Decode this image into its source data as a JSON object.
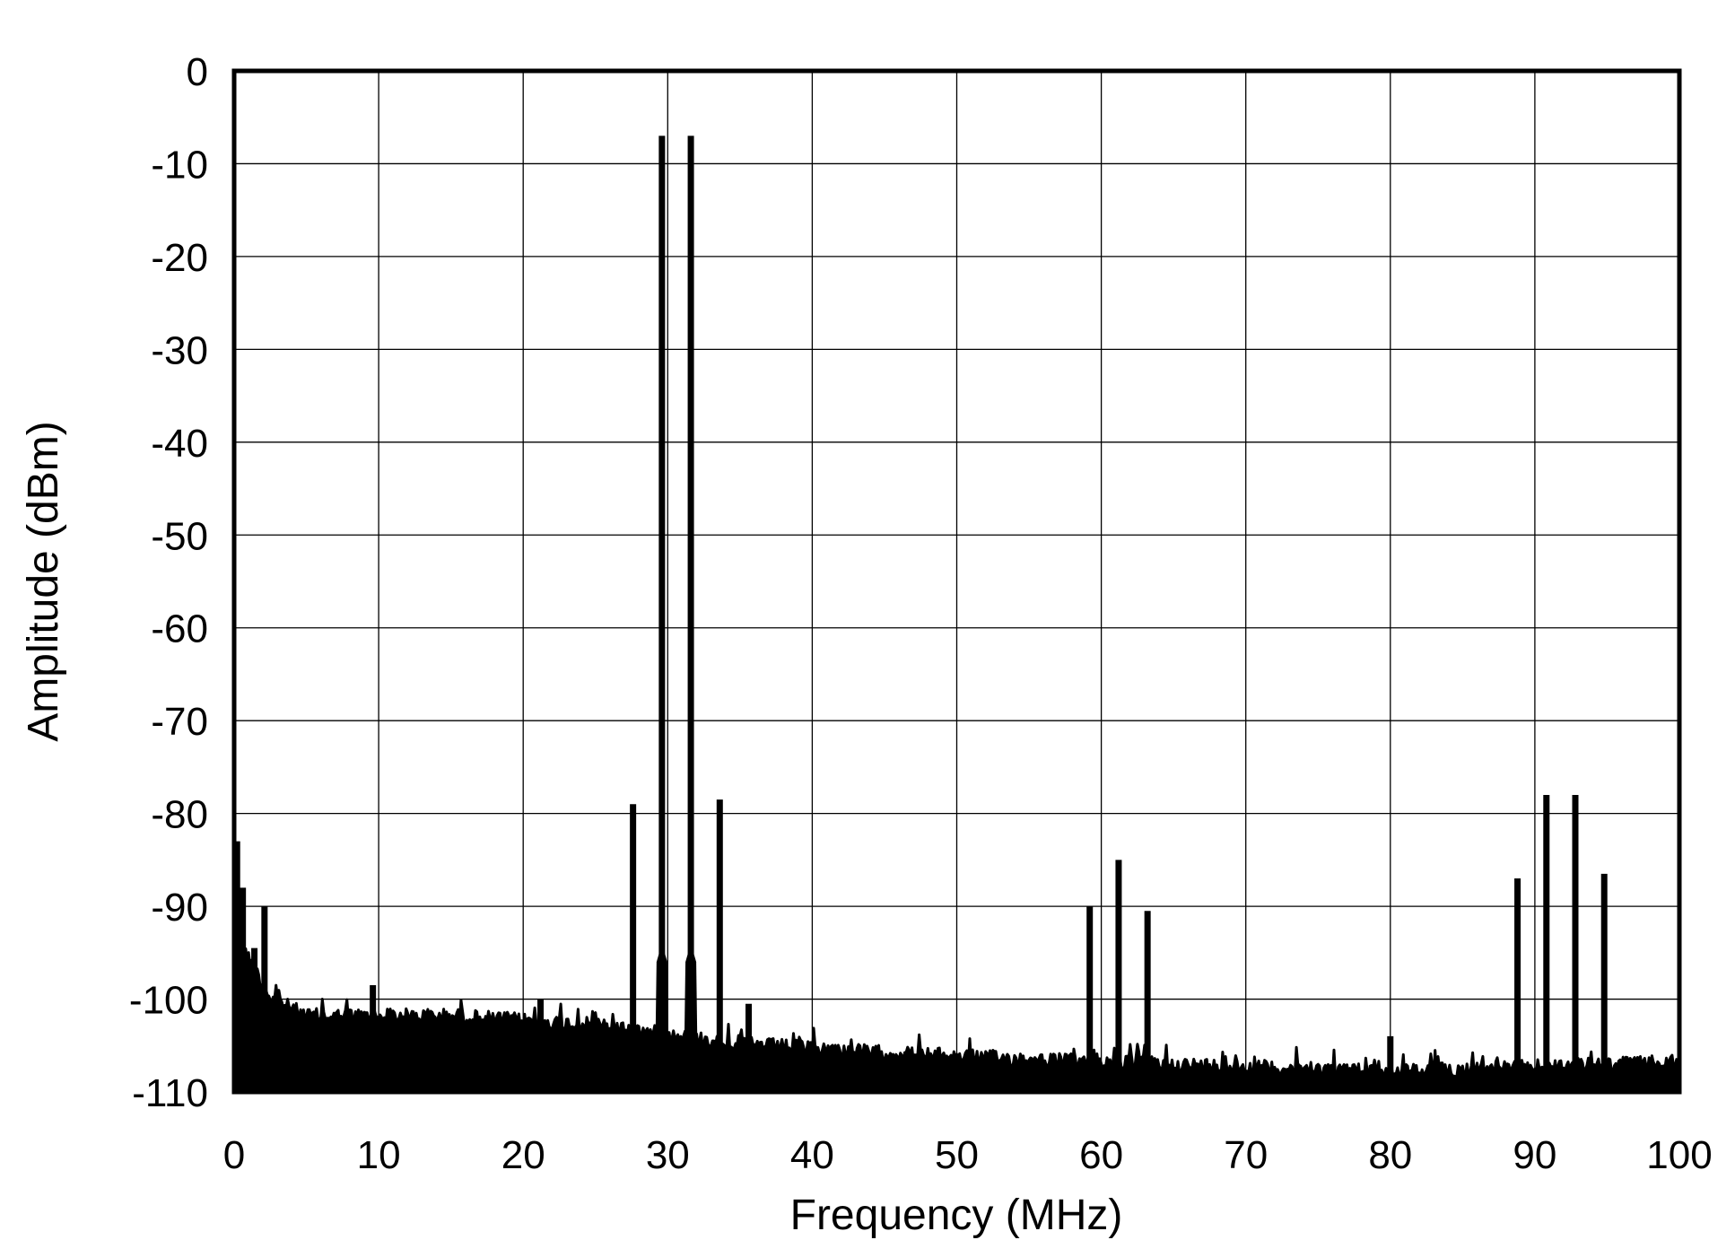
{
  "chart_data": {
    "type": "line",
    "title": "",
    "xlabel": "Frequency (MHz)",
    "ylabel": "Amplitude (dBm)",
    "xlim": [
      0,
      100
    ],
    "ylim": [
      -110,
      0
    ],
    "xticks": [
      "0",
      "10",
      "20",
      "30",
      "40",
      "50",
      "60",
      "70",
      "80",
      "90",
      "100"
    ],
    "yticks": [
      "0",
      "-10",
      "-20",
      "-30",
      "-40",
      "-50",
      "-60",
      "-70",
      "-80",
      "-90",
      "-100",
      "-110"
    ],
    "grid": true,
    "legend": "none",
    "line_color": "#000000",
    "peaks": [
      {
        "x": 0.2,
        "y": -83
      },
      {
        "x": 0.6,
        "y": -88
      },
      {
        "x": 1.4,
        "y": -94.5
      },
      {
        "x": 2.1,
        "y": -90
      },
      {
        "x": 9.6,
        "y": -98.5
      },
      {
        "x": 21.2,
        "y": -100
      },
      {
        "x": 27.6,
        "y": -79
      },
      {
        "x": 29.6,
        "y": -7
      },
      {
        "x": 31.6,
        "y": -7
      },
      {
        "x": 33.6,
        "y": -78.5
      },
      {
        "x": 35.6,
        "y": -100.5
      },
      {
        "x": 59.2,
        "y": -90
      },
      {
        "x": 61.2,
        "y": -85
      },
      {
        "x": 63.2,
        "y": -90.5
      },
      {
        "x": 80.0,
        "y": -104
      },
      {
        "x": 88.8,
        "y": -87
      },
      {
        "x": 90.8,
        "y": -78
      },
      {
        "x": 92.8,
        "y": -78
      },
      {
        "x": 94.8,
        "y": -86.5
      }
    ],
    "noise_floor_top": [
      {
        "x": 0,
        "y": -92
      },
      {
        "x": 2.5,
        "y": -99
      },
      {
        "x": 5,
        "y": -101
      },
      {
        "x": 15,
        "y": -101
      },
      {
        "x": 25,
        "y": -102
      },
      {
        "x": 35,
        "y": -104
      },
      {
        "x": 45,
        "y": -105
      },
      {
        "x": 60,
        "y": -106
      },
      {
        "x": 80,
        "y": -107
      },
      {
        "x": 100,
        "y": -106
      }
    ]
  }
}
